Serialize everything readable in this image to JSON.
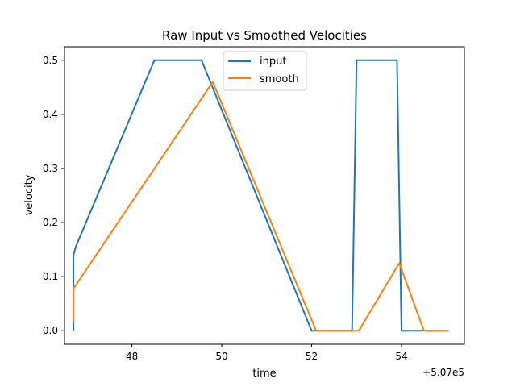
{
  "chart_data": {
    "type": "line",
    "title": "Raw Input vs Smoothed Velocities",
    "xlabel": "time",
    "ylabel": "velocity",
    "x_offset_label": "+5.07e5",
    "xlim": [
      46.5,
      55.4
    ],
    "ylim": [
      -0.025,
      0.525
    ],
    "xticks": [
      48,
      50,
      52,
      54
    ],
    "xtick_labels": [
      "48",
      "50",
      "52",
      "54"
    ],
    "yticks": [
      0.0,
      0.1,
      0.2,
      0.3,
      0.4,
      0.5
    ],
    "ytick_labels": [
      "0.0",
      "0.1",
      "0.2",
      "0.3",
      "0.4",
      "0.5"
    ],
    "grid": false,
    "legend_position": "top-center",
    "series": [
      {
        "name": "input",
        "color": "#1f77b4",
        "points": [
          [
            46.7,
            0.0
          ],
          [
            46.7,
            0.14
          ],
          [
            46.75,
            0.155
          ],
          [
            48.5,
            0.5
          ],
          [
            49.55,
            0.5
          ],
          [
            52.0,
            0.0
          ],
          [
            52.9,
            0.0
          ],
          [
            53.0,
            0.5
          ],
          [
            53.9,
            0.5
          ],
          [
            54.0,
            0.0
          ],
          [
            55.05,
            0.0
          ]
        ]
      },
      {
        "name": "smooth",
        "color": "#ff7f0e",
        "points": [
          [
            46.7,
            0.015
          ],
          [
            46.7,
            0.078
          ],
          [
            49.8,
            0.46
          ],
          [
            52.1,
            0.0
          ],
          [
            53.05,
            0.0
          ],
          [
            53.95,
            0.125
          ],
          [
            54.5,
            0.0
          ],
          [
            55.05,
            0.0
          ]
        ]
      }
    ]
  }
}
